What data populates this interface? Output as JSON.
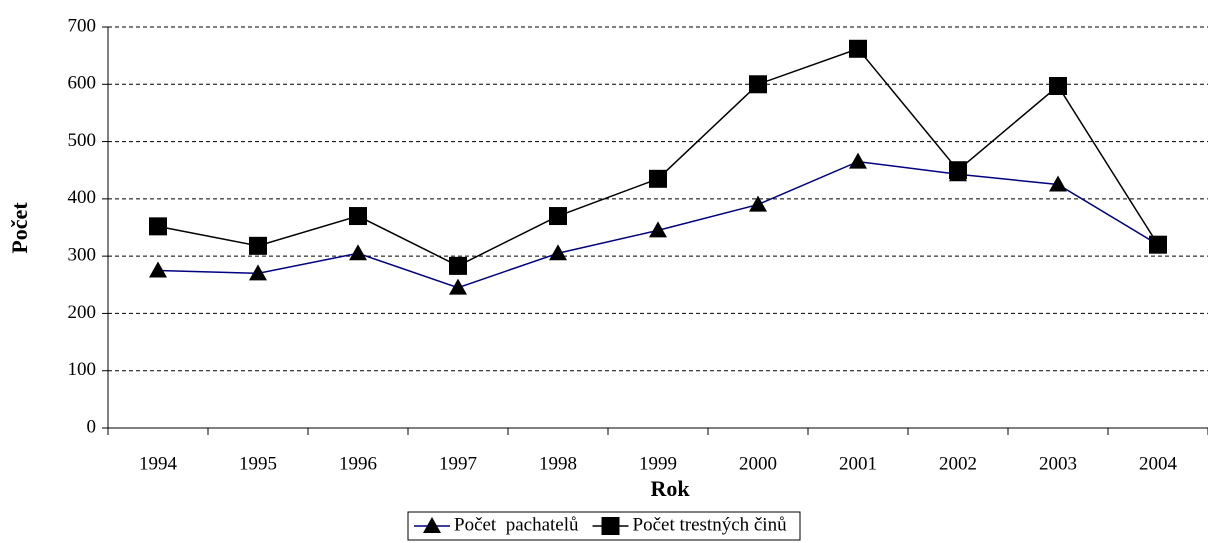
{
  "chart_data": {
    "type": "line",
    "x_label": "Rok",
    "y_label": "Počet",
    "categories": [
      "1994",
      "1995",
      "1996",
      "1997",
      "1998",
      "1999",
      "2000",
      "2001",
      "2002",
      "2003",
      "2004"
    ],
    "series": [
      {
        "name": "Počet  pachatelů",
        "color": "#000080",
        "marker": "triangle",
        "values": [
          275,
          270,
          305,
          245,
          305,
          345,
          390,
          465,
          443,
          425,
          320
        ]
      },
      {
        "name": "Počet trestných činů",
        "color": "#000000",
        "marker": "square",
        "values": [
          352,
          318,
          370,
          283,
          370,
          435,
          600,
          662,
          450,
          597,
          320
        ]
      }
    ],
    "ylim": [
      0,
      700
    ],
    "yticks": [
      0,
      100,
      200,
      300,
      400,
      500,
      600,
      700
    ],
    "grid": true,
    "legend": "bottom"
  }
}
